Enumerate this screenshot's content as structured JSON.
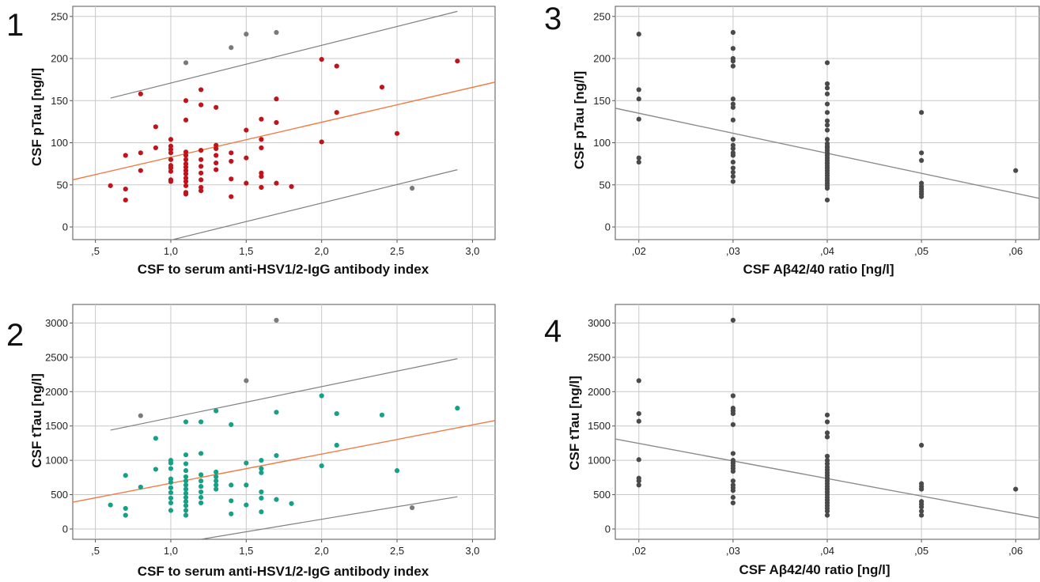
{
  "chart_data": [
    {
      "id": "p1",
      "panel_label": "1",
      "type": "scatter",
      "xlabel": "CSF to serum anti-HSV1/2-IgG antibody index",
      "ylabel": "CSF pTau [ng/l]",
      "xlim": [
        0.35,
        3.15
      ],
      "ylim": [
        -15,
        262
      ],
      "xticks": [
        0.5,
        1.0,
        1.5,
        2.0,
        2.5,
        3.0
      ],
      "xtick_labels": [
        ",5",
        "1,0",
        "1,5",
        "2,0",
        "2,5",
        "3,0"
      ],
      "yticks": [
        0,
        50,
        100,
        150,
        200,
        250
      ],
      "ytick_labels": [
        "0",
        "50",
        "100",
        "150",
        "200",
        "250"
      ],
      "grid": true,
      "point_color": "#c0141c",
      "outlier_color": "#7a7a7a",
      "fit_color": "#f07a45",
      "ci_color": "#808080",
      "points": [
        [
          0.6,
          49
        ],
        [
          0.7,
          85
        ],
        [
          0.7,
          45
        ],
        [
          0.7,
          32
        ],
        [
          0.8,
          158
        ],
        [
          0.8,
          88
        ],
        [
          0.8,
          67
        ],
        [
          0.9,
          119
        ],
        [
          0.9,
          94
        ],
        [
          1.0,
          104
        ],
        [
          1.0,
          96
        ],
        [
          1.0,
          92
        ],
        [
          1.0,
          88
        ],
        [
          1.0,
          80
        ],
        [
          1.0,
          73
        ],
        [
          1.0,
          70
        ],
        [
          1.0,
          66
        ],
        [
          1.0,
          56
        ],
        [
          1.0,
          54
        ],
        [
          1.1,
          150
        ],
        [
          1.1,
          127
        ],
        [
          1.1,
          89
        ],
        [
          1.1,
          85
        ],
        [
          1.1,
          80
        ],
        [
          1.1,
          75
        ],
        [
          1.1,
          71
        ],
        [
          1.1,
          67
        ],
        [
          1.1,
          63
        ],
        [
          1.1,
          58
        ],
        [
          1.1,
          54
        ],
        [
          1.1,
          49
        ],
        [
          1.1,
          41
        ],
        [
          1.1,
          39
        ],
        [
          1.2,
          163
        ],
        [
          1.2,
          145
        ],
        [
          1.2,
          91
        ],
        [
          1.2,
          80
        ],
        [
          1.2,
          72
        ],
        [
          1.2,
          64
        ],
        [
          1.2,
          56
        ],
        [
          1.2,
          47
        ],
        [
          1.2,
          43
        ],
        [
          1.3,
          142
        ],
        [
          1.3,
          97
        ],
        [
          1.3,
          93
        ],
        [
          1.3,
          85
        ],
        [
          1.3,
          76
        ],
        [
          1.3,
          68
        ],
        [
          1.4,
          88
        ],
        [
          1.4,
          78
        ],
        [
          1.4,
          57
        ],
        [
          1.4,
          36
        ],
        [
          1.5,
          115
        ],
        [
          1.5,
          82
        ],
        [
          1.5,
          52
        ],
        [
          1.6,
          128
        ],
        [
          1.6,
          104
        ],
        [
          1.6,
          94
        ],
        [
          1.6,
          64
        ],
        [
          1.6,
          60
        ],
        [
          1.6,
          47
        ],
        [
          1.7,
          152
        ],
        [
          1.7,
          124
        ],
        [
          1.7,
          52
        ],
        [
          1.8,
          48
        ],
        [
          2.0,
          199
        ],
        [
          2.0,
          101
        ],
        [
          2.1,
          191
        ],
        [
          2.1,
          136
        ],
        [
          2.4,
          166
        ],
        [
          2.5,
          111
        ],
        [
          2.9,
          197
        ]
      ],
      "outliers": [
        [
          1.1,
          195
        ],
        [
          1.4,
          213
        ],
        [
          1.5,
          229
        ],
        [
          1.7,
          231
        ],
        [
          2.6,
          46
        ]
      ],
      "fit_line": [
        [
          0.35,
          56
        ],
        [
          3.15,
          172
        ]
      ],
      "ci_lines": [
        [
          [
            0.6,
            153
          ],
          [
            2.9,
            256
          ]
        ],
        [
          [
            0.9,
            -20
          ],
          [
            2.9,
            68
          ]
        ]
      ]
    },
    {
      "id": "p2",
      "panel_label": "2",
      "type": "scatter",
      "xlabel": "CSF to serum anti-HSV1/2-IgG antibody index",
      "ylabel": "CSF tTau [ng/l]",
      "xlim": [
        0.35,
        3.15
      ],
      "ylim": [
        -150,
        3270
      ],
      "xticks": [
        0.5,
        1.0,
        1.5,
        2.0,
        2.5,
        3.0
      ],
      "xtick_labels": [
        ",5",
        "1,0",
        "1,5",
        "2,0",
        "2,5",
        "3,0"
      ],
      "yticks": [
        0,
        500,
        1000,
        1500,
        2000,
        2500,
        3000
      ],
      "ytick_labels": [
        "0",
        "500",
        "1000",
        "1500",
        "2000",
        "2500",
        "3000"
      ],
      "grid": true,
      "point_color": "#16a085",
      "outlier_color": "#7a7a7a",
      "fit_color": "#f07a45",
      "ci_color": "#808080",
      "points": [
        [
          0.6,
          350
        ],
        [
          0.7,
          780
        ],
        [
          0.7,
          300
        ],
        [
          0.7,
          200
        ],
        [
          0.8,
          610
        ],
        [
          0.9,
          1320
        ],
        [
          0.9,
          870
        ],
        [
          1.0,
          1000
        ],
        [
          1.0,
          960
        ],
        [
          1.0,
          880
        ],
        [
          1.0,
          730
        ],
        [
          1.0,
          680
        ],
        [
          1.0,
          600
        ],
        [
          1.0,
          530
        ],
        [
          1.0,
          450
        ],
        [
          1.0,
          380
        ],
        [
          1.0,
          270
        ],
        [
          1.1,
          1560
        ],
        [
          1.1,
          1080
        ],
        [
          1.1,
          950
        ],
        [
          1.1,
          850
        ],
        [
          1.1,
          760
        ],
        [
          1.1,
          700
        ],
        [
          1.1,
          640
        ],
        [
          1.1,
          580
        ],
        [
          1.1,
          520
        ],
        [
          1.1,
          460
        ],
        [
          1.1,
          400
        ],
        [
          1.1,
          340
        ],
        [
          1.1,
          270
        ],
        [
          1.1,
          200
        ],
        [
          1.2,
          1560
        ],
        [
          1.2,
          1100
        ],
        [
          1.2,
          790
        ],
        [
          1.2,
          700
        ],
        [
          1.2,
          620
        ],
        [
          1.2,
          540
        ],
        [
          1.2,
          460
        ],
        [
          1.2,
          380
        ],
        [
          1.3,
          1720
        ],
        [
          1.3,
          830
        ],
        [
          1.3,
          760
        ],
        [
          1.3,
          700
        ],
        [
          1.3,
          640
        ],
        [
          1.3,
          580
        ],
        [
          1.4,
          1520
        ],
        [
          1.4,
          640
        ],
        [
          1.4,
          410
        ],
        [
          1.4,
          220
        ],
        [
          1.5,
          960
        ],
        [
          1.5,
          640
        ],
        [
          1.5,
          350
        ],
        [
          1.6,
          1000
        ],
        [
          1.6,
          880
        ],
        [
          1.6,
          820
        ],
        [
          1.6,
          540
        ],
        [
          1.6,
          450
        ],
        [
          1.6,
          250
        ],
        [
          1.7,
          1700
        ],
        [
          1.7,
          1070
        ],
        [
          1.7,
          430
        ],
        [
          1.8,
          370
        ],
        [
          2.0,
          1940
        ],
        [
          2.0,
          920
        ],
        [
          2.1,
          1680
        ],
        [
          2.1,
          1220
        ],
        [
          2.4,
          1660
        ],
        [
          2.5,
          850
        ],
        [
          2.9,
          1760
        ]
      ],
      "outliers": [
        [
          0.8,
          1650
        ],
        [
          1.5,
          2160
        ],
        [
          1.7,
          3040
        ],
        [
          2.6,
          310
        ]
      ],
      "fit_line": [
        [
          0.35,
          390
        ],
        [
          3.15,
          1580
        ]
      ],
      "ci_lines": [
        [
          [
            0.6,
            1440
          ],
          [
            2.9,
            2480
          ]
        ],
        [
          [
            1.2,
            -150
          ],
          [
            2.9,
            470
          ]
        ]
      ]
    },
    {
      "id": "p3",
      "panel_label": "3",
      "type": "scatter",
      "xlabel": "CSF Aβ42/40 ratio [ng/l]",
      "ylabel": "CSF pTau [ng/l]",
      "xlim": [
        0.0175,
        0.0625
      ],
      "ylim": [
        -15,
        262
      ],
      "xticks": [
        0.02,
        0.03,
        0.04,
        0.05,
        0.06
      ],
      "xtick_labels": [
        ",02",
        ",03",
        ",04",
        ",05",
        ",06"
      ],
      "yticks": [
        0,
        50,
        100,
        150,
        200,
        250
      ],
      "ytick_labels": [
        "0",
        "50",
        "100",
        "150",
        "200",
        "250"
      ],
      "grid": true,
      "point_color": "#4a4a4a",
      "fit_color": "#8a8a8a",
      "points": [
        [
          0.02,
          229
        ],
        [
          0.02,
          163
        ],
        [
          0.02,
          152
        ],
        [
          0.02,
          128
        ],
        [
          0.02,
          82
        ],
        [
          0.02,
          77
        ],
        [
          0.03,
          231
        ],
        [
          0.03,
          212
        ],
        [
          0.03,
          200
        ],
        [
          0.03,
          197
        ],
        [
          0.03,
          191
        ],
        [
          0.03,
          152
        ],
        [
          0.03,
          146
        ],
        [
          0.03,
          142
        ],
        [
          0.03,
          127
        ],
        [
          0.03,
          104
        ],
        [
          0.03,
          97
        ],
        [
          0.03,
          93
        ],
        [
          0.03,
          88
        ],
        [
          0.03,
          85
        ],
        [
          0.03,
          77
        ],
        [
          0.03,
          70
        ],
        [
          0.03,
          65
        ],
        [
          0.03,
          60
        ],
        [
          0.03,
          54
        ],
        [
          0.04,
          195
        ],
        [
          0.04,
          170
        ],
        [
          0.04,
          165
        ],
        [
          0.04,
          158
        ],
        [
          0.04,
          146
        ],
        [
          0.04,
          136
        ],
        [
          0.04,
          126
        ],
        [
          0.04,
          121
        ],
        [
          0.04,
          115
        ],
        [
          0.04,
          104
        ],
        [
          0.04,
          99
        ],
        [
          0.04,
          96
        ],
        [
          0.04,
          94
        ],
        [
          0.04,
          91
        ],
        [
          0.04,
          88
        ],
        [
          0.04,
          85
        ],
        [
          0.04,
          82
        ],
        [
          0.04,
          79
        ],
        [
          0.04,
          76
        ],
        [
          0.04,
          73
        ],
        [
          0.04,
          70
        ],
        [
          0.04,
          67
        ],
        [
          0.04,
          64
        ],
        [
          0.04,
          61
        ],
        [
          0.04,
          58
        ],
        [
          0.04,
          55
        ],
        [
          0.04,
          52
        ],
        [
          0.04,
          49
        ],
        [
          0.04,
          46
        ],
        [
          0.04,
          32
        ],
        [
          0.05,
          136
        ],
        [
          0.05,
          88
        ],
        [
          0.05,
          79
        ],
        [
          0.05,
          52
        ],
        [
          0.05,
          48
        ],
        [
          0.05,
          45
        ],
        [
          0.05,
          42
        ],
        [
          0.05,
          39
        ],
        [
          0.05,
          36
        ],
        [
          0.06,
          67
        ]
      ],
      "fit_line": [
        [
          0.0175,
          141
        ],
        [
          0.0625,
          34
        ]
      ]
    },
    {
      "id": "p4",
      "panel_label": "4",
      "type": "scatter",
      "xlabel": "CSF Aβ42/40 ratio [ng/l]",
      "ylabel": "CSF tTau [ng/l]",
      "xlim": [
        0.0175,
        0.0625
      ],
      "ylim": [
        -150,
        3270
      ],
      "xticks": [
        0.02,
        0.03,
        0.04,
        0.05,
        0.06
      ],
      "xtick_labels": [
        ",02",
        ",03",
        ",04",
        ",05",
        ",06"
      ],
      "yticks": [
        0,
        500,
        1000,
        1500,
        2000,
        2500,
        3000
      ],
      "ytick_labels": [
        "0",
        "500",
        "1000",
        "1500",
        "2000",
        "2500",
        "3000"
      ],
      "grid": true,
      "point_color": "#4a4a4a",
      "fit_color": "#8a8a8a",
      "points": [
        [
          0.02,
          2160
        ],
        [
          0.02,
          1680
        ],
        [
          0.02,
          1570
        ],
        [
          0.02,
          1010
        ],
        [
          0.02,
          740
        ],
        [
          0.02,
          700
        ],
        [
          0.02,
          640
        ],
        [
          0.03,
          3040
        ],
        [
          0.03,
          1940
        ],
        [
          0.03,
          1760
        ],
        [
          0.03,
          1720
        ],
        [
          0.03,
          1680
        ],
        [
          0.03,
          1520
        ],
        [
          0.03,
          1100
        ],
        [
          0.03,
          1000
        ],
        [
          0.03,
          960
        ],
        [
          0.03,
          920
        ],
        [
          0.03,
          880
        ],
        [
          0.03,
          840
        ],
        [
          0.03,
          700
        ],
        [
          0.03,
          640
        ],
        [
          0.03,
          600
        ],
        [
          0.03,
          560
        ],
        [
          0.03,
          460
        ],
        [
          0.03,
          380
        ],
        [
          0.04,
          1660
        ],
        [
          0.04,
          1560
        ],
        [
          0.04,
          1400
        ],
        [
          0.04,
          1340
        ],
        [
          0.04,
          1060
        ],
        [
          0.04,
          1000
        ],
        [
          0.04,
          950
        ],
        [
          0.04,
          900
        ],
        [
          0.04,
          860
        ],
        [
          0.04,
          820
        ],
        [
          0.04,
          780
        ],
        [
          0.04,
          740
        ],
        [
          0.04,
          700
        ],
        [
          0.04,
          660
        ],
        [
          0.04,
          620
        ],
        [
          0.04,
          580
        ],
        [
          0.04,
          540
        ],
        [
          0.04,
          500
        ],
        [
          0.04,
          460
        ],
        [
          0.04,
          420
        ],
        [
          0.04,
          380
        ],
        [
          0.04,
          340
        ],
        [
          0.04,
          300
        ],
        [
          0.04,
          260
        ],
        [
          0.04,
          200
        ],
        [
          0.05,
          1220
        ],
        [
          0.05,
          660
        ],
        [
          0.05,
          620
        ],
        [
          0.05,
          580
        ],
        [
          0.05,
          400
        ],
        [
          0.05,
          360
        ],
        [
          0.05,
          320
        ],
        [
          0.05,
          260
        ],
        [
          0.05,
          200
        ],
        [
          0.06,
          580
        ]
      ],
      "fit_line": [
        [
          0.0175,
          1310
        ],
        [
          0.0625,
          160
        ]
      ]
    }
  ]
}
